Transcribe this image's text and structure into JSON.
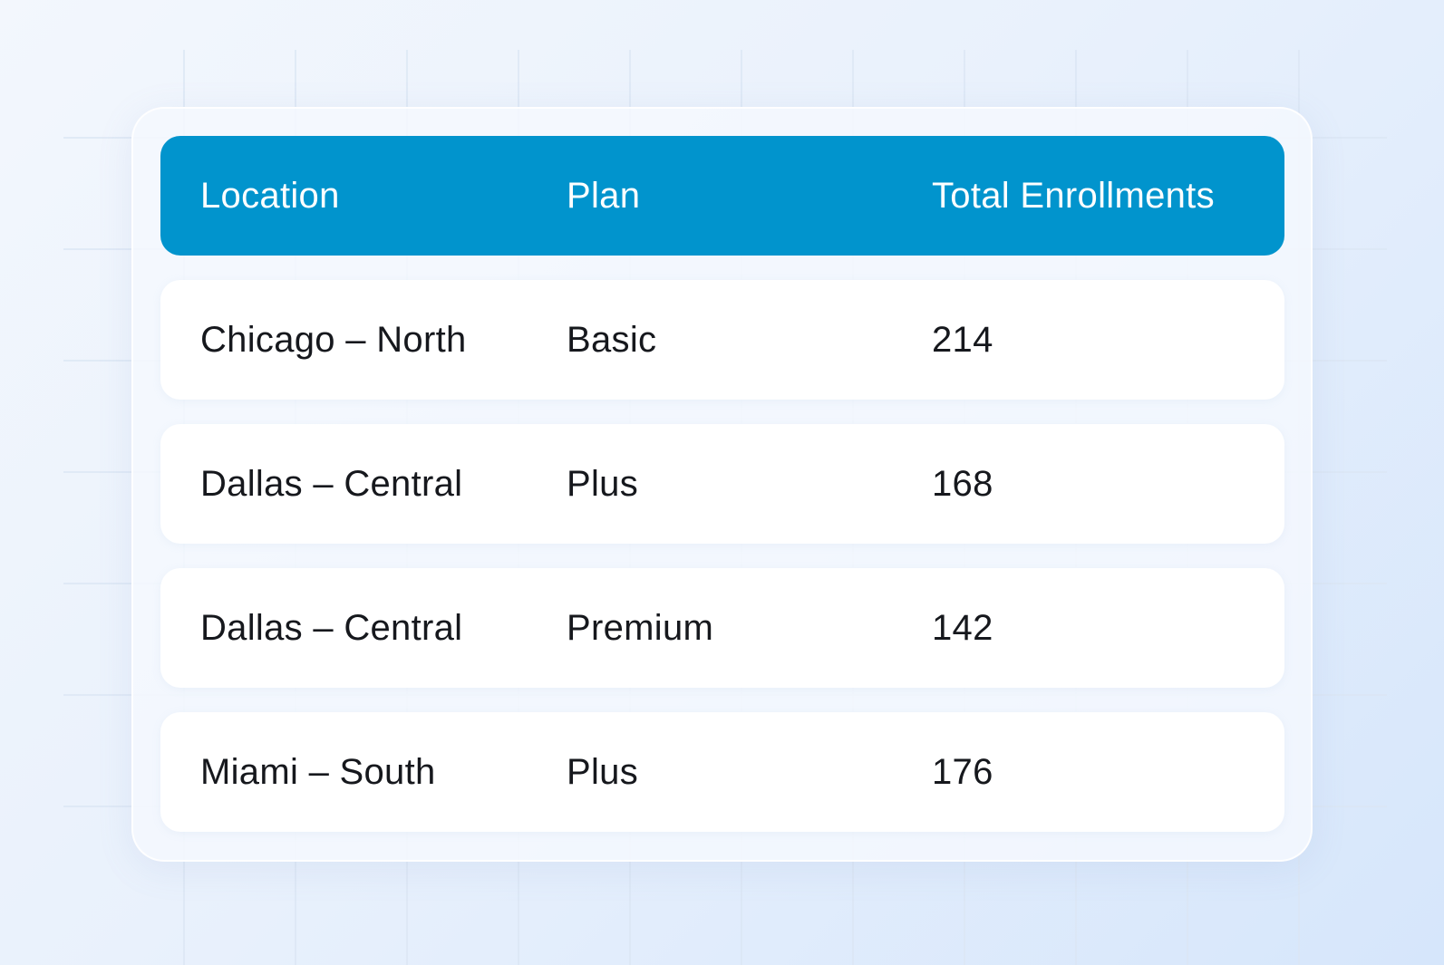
{
  "chart_data": {
    "type": "table",
    "columns": [
      "Location",
      "Plan",
      "Total Enrollments"
    ],
    "rows": [
      [
        "Chicago – North",
        "Basic",
        "214"
      ],
      [
        "Dallas – Central",
        "Plus",
        "168"
      ],
      [
        "Dallas – Central",
        "Premium",
        "142"
      ],
      [
        "Miami – South",
        "Plus",
        "176"
      ]
    ]
  },
  "colors": {
    "header_background": "#0194cd",
    "header_text": "#ffffff",
    "row_background": "#ffffff",
    "row_text": "#16181d"
  }
}
